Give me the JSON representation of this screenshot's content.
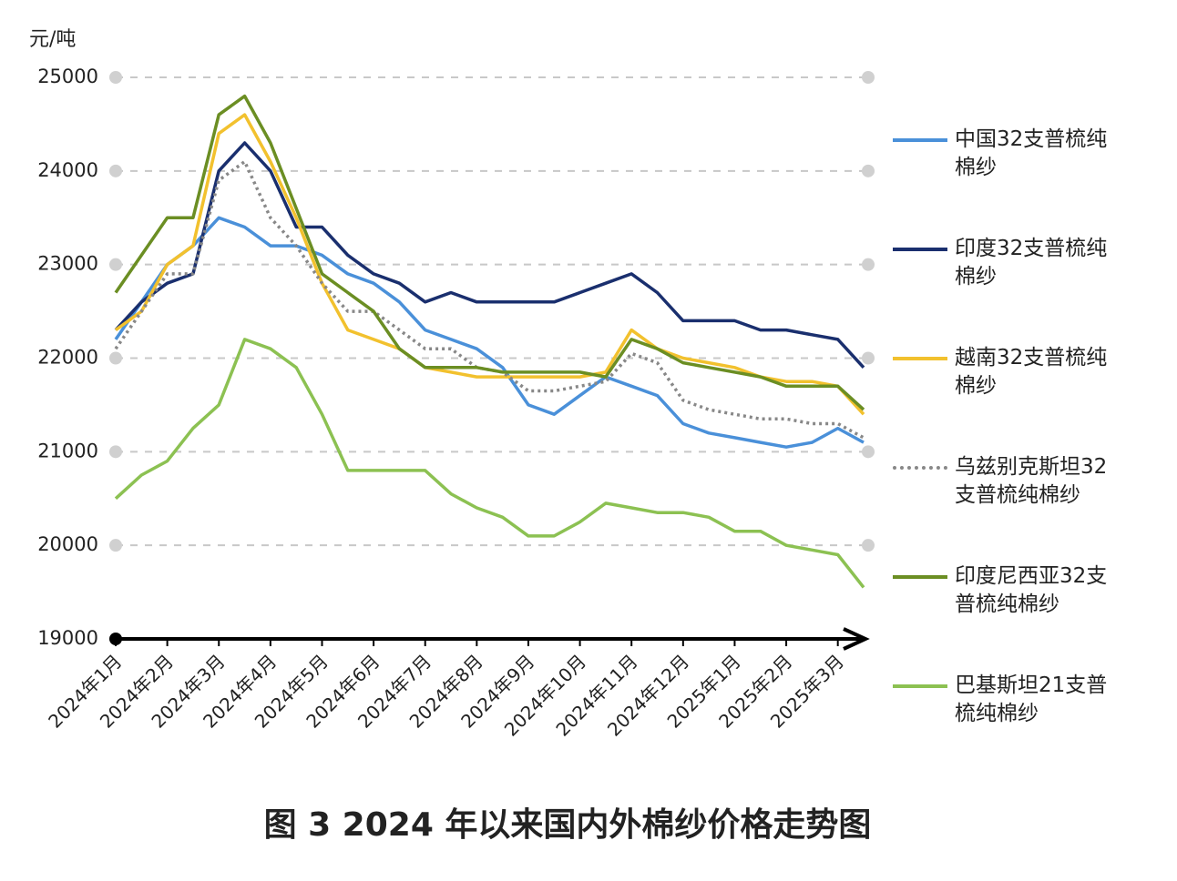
{
  "chart_data": {
    "type": "line",
    "title": "图 3  2024 年以来国内外棉纱价格走势图",
    "y_label": "元/吨",
    "categories": [
      "2024年1月",
      null,
      "2024年2月",
      null,
      "2024年3月",
      null,
      "2024年4月",
      null,
      "2024年5月",
      null,
      "2024年6月",
      null,
      "2024年7月",
      null,
      "2024年8月",
      null,
      "2024年9月",
      null,
      "2024年10月",
      null,
      "2024年11月",
      null,
      "2024年12月",
      null,
      "2025年1月",
      null,
      "2025年2月",
      null,
      "2025年3月",
      null
    ],
    "ylim": [
      19000,
      25000
    ],
    "yticks": [
      19000,
      20000,
      21000,
      22000,
      23000,
      24000,
      25000
    ],
    "grid": true,
    "series": [
      {
        "name": "中国32支普梳纯棉纱",
        "color": "#4a90d9",
        "style": "solid",
        "values": [
          22200,
          22600,
          23000,
          23200,
          23500,
          23400,
          23200,
          23200,
          23100,
          22900,
          22800,
          22600,
          22300,
          22200,
          22100,
          21900,
          21500,
          21400,
          21600,
          21800,
          21700,
          21600,
          21300,
          21200,
          21150,
          21100,
          21050,
          21100,
          21250,
          21100
        ]
      },
      {
        "name": "印度32支普梳纯棉纱",
        "color": "#1a2f6e",
        "style": "solid",
        "values": [
          22300,
          22600,
          22800,
          22900,
          24000,
          24300,
          24000,
          23400,
          23400,
          23100,
          22900,
          22800,
          22600,
          22700,
          22600,
          22600,
          22600,
          22600,
          22700,
          22800,
          22900,
          22700,
          22400,
          22400,
          22400,
          22300,
          22300,
          22250,
          22200,
          21900
        ]
      },
      {
        "name": "越南32支普梳纯棉纱",
        "color": "#f2c12e",
        "style": "solid",
        "values": [
          22300,
          22500,
          23000,
          23200,
          24400,
          24600,
          24100,
          23500,
          22800,
          22300,
          22200,
          22100,
          21900,
          21850,
          21800,
          21800,
          21800,
          21800,
          21800,
          21850,
          22300,
          22100,
          22000,
          21950,
          21900,
          21800,
          21750,
          21750,
          21700,
          21400
        ]
      },
      {
        "name": "乌兹别克斯坦32支普梳纯棉纱",
        "color": "#888888",
        "style": "dotted",
        "values": [
          22100,
          22500,
          22900,
          22900,
          23900,
          24100,
          23500,
          23200,
          22800,
          22500,
          22500,
          22300,
          22100,
          22100,
          21900,
          21850,
          21650,
          21650,
          21700,
          21750,
          22050,
          21950,
          21550,
          21450,
          21400,
          21350,
          21350,
          21300,
          21300,
          21150
        ]
      },
      {
        "name": "印度尼西亚32支普梳纯棉纱",
        "color": "#6b8e23",
        "style": "solid",
        "values": [
          22700,
          23100,
          23500,
          23500,
          24600,
          24800,
          24300,
          23600,
          22900,
          22700,
          22500,
          22100,
          21900,
          21900,
          21900,
          21850,
          21850,
          21850,
          21850,
          21800,
          22200,
          22100,
          21950,
          21900,
          21850,
          21800,
          21700,
          21700,
          21700,
          21450
        ]
      },
      {
        "name": "巴基斯坦21支普梳纯棉纱",
        "color": "#8cc152",
        "style": "solid",
        "values": [
          20500,
          20750,
          20900,
          21250,
          21500,
          22200,
          22100,
          21900,
          21400,
          20800,
          20800,
          20800,
          20800,
          20550,
          20400,
          20300,
          20100,
          20100,
          20250,
          20450,
          20400,
          20350,
          20350,
          20300,
          20150,
          20150,
          20000,
          19950,
          19900,
          19550
        ]
      }
    ]
  }
}
